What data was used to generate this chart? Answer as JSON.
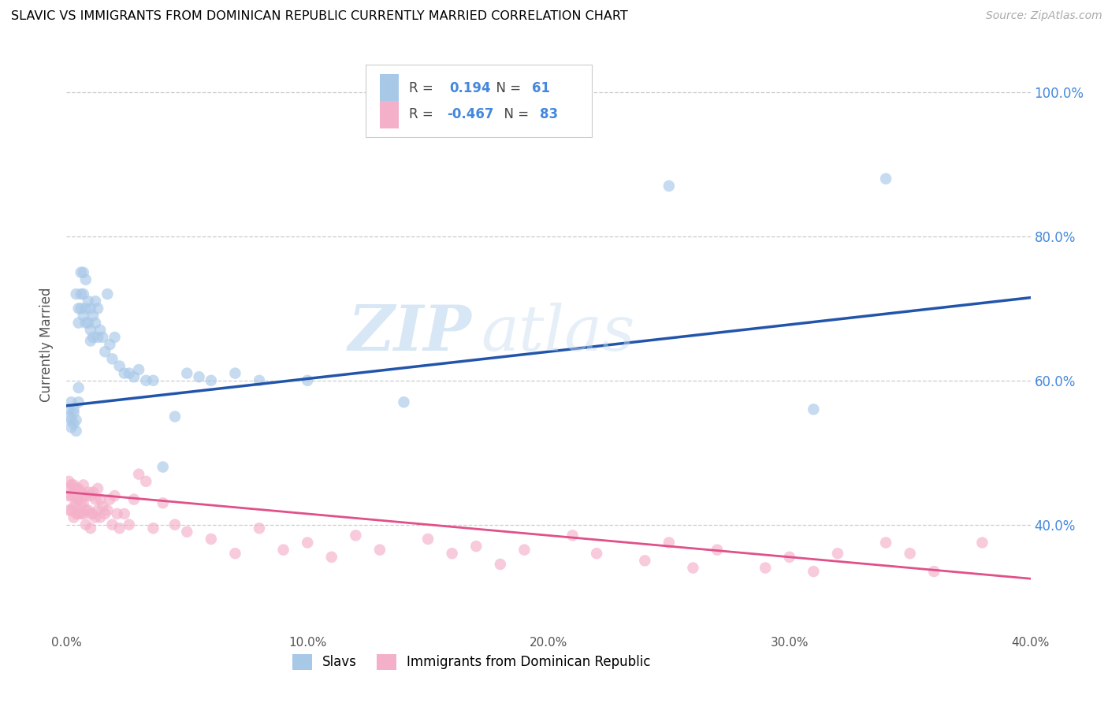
{
  "title": "SLAVIC VS IMMIGRANTS FROM DOMINICAN REPUBLIC CURRENTLY MARRIED CORRELATION CHART",
  "source": "Source: ZipAtlas.com",
  "ylabel": "Currently Married",
  "xlim": [
    0.0,
    0.4
  ],
  "ylim": [
    0.25,
    1.05
  ],
  "xtick_values": [
    0.0,
    0.1,
    0.2,
    0.3,
    0.4
  ],
  "xtick_labels": [
    "0.0%",
    "10.0%",
    "20.0%",
    "30.0%",
    "40.0%"
  ],
  "ytick_values": [
    0.4,
    0.6,
    0.8,
    1.0
  ],
  "ytick_labels": [
    "40.0%",
    "60.0%",
    "80.0%",
    "100.0%"
  ],
  "slavs_color": "#a8c8e8",
  "slavs_line_color": "#2255aa",
  "dominican_color": "#f4b0c8",
  "dominican_line_color": "#e0508a",
  "R_slavs": 0.194,
  "N_slavs": 61,
  "R_dominican": -0.467,
  "N_dominican": 83,
  "background_color": "#ffffff",
  "grid_color": "#cccccc",
  "watermark_zip": "ZIP",
  "watermark_atlas": "atlas",
  "legend_label_slavs": "Slavs",
  "legend_label_dominican": "Immigrants from Dominican Republic",
  "slavs_line_x0": 0.0,
  "slavs_line_y0": 0.565,
  "slavs_line_x1": 0.4,
  "slavs_line_y1": 0.715,
  "dominican_line_x0": 0.0,
  "dominican_line_y0": 0.445,
  "dominican_line_x1": 0.4,
  "dominican_line_y1": 0.325,
  "slavs_x": [
    0.001,
    0.001,
    0.002,
    0.002,
    0.002,
    0.003,
    0.003,
    0.003,
    0.004,
    0.004,
    0.004,
    0.005,
    0.005,
    0.005,
    0.005,
    0.006,
    0.006,
    0.006,
    0.007,
    0.007,
    0.007,
    0.008,
    0.008,
    0.008,
    0.009,
    0.009,
    0.01,
    0.01,
    0.01,
    0.011,
    0.011,
    0.012,
    0.012,
    0.013,
    0.013,
    0.014,
    0.015,
    0.016,
    0.017,
    0.018,
    0.019,
    0.02,
    0.022,
    0.024,
    0.026,
    0.028,
    0.03,
    0.033,
    0.036,
    0.04,
    0.045,
    0.05,
    0.055,
    0.06,
    0.07,
    0.08,
    0.1,
    0.14,
    0.25,
    0.31,
    0.34
  ],
  "slavs_y": [
    0.56,
    0.55,
    0.545,
    0.535,
    0.57,
    0.54,
    0.555,
    0.56,
    0.53,
    0.545,
    0.72,
    0.7,
    0.68,
    0.59,
    0.57,
    0.75,
    0.72,
    0.7,
    0.75,
    0.72,
    0.69,
    0.74,
    0.7,
    0.68,
    0.71,
    0.68,
    0.7,
    0.67,
    0.655,
    0.69,
    0.66,
    0.71,
    0.68,
    0.7,
    0.66,
    0.67,
    0.66,
    0.64,
    0.72,
    0.65,
    0.63,
    0.66,
    0.62,
    0.61,
    0.61,
    0.605,
    0.615,
    0.6,
    0.6,
    0.48,
    0.55,
    0.61,
    0.605,
    0.6,
    0.61,
    0.6,
    0.6,
    0.57,
    0.87,
    0.56,
    0.88
  ],
  "dominican_x": [
    0.001,
    0.001,
    0.001,
    0.001,
    0.002,
    0.002,
    0.002,
    0.003,
    0.003,
    0.003,
    0.003,
    0.004,
    0.004,
    0.004,
    0.005,
    0.005,
    0.005,
    0.006,
    0.006,
    0.006,
    0.007,
    0.007,
    0.007,
    0.008,
    0.008,
    0.008,
    0.009,
    0.009,
    0.01,
    0.01,
    0.01,
    0.011,
    0.011,
    0.012,
    0.012,
    0.013,
    0.013,
    0.014,
    0.014,
    0.015,
    0.016,
    0.017,
    0.018,
    0.019,
    0.02,
    0.021,
    0.022,
    0.024,
    0.026,
    0.028,
    0.03,
    0.033,
    0.036,
    0.04,
    0.045,
    0.05,
    0.06,
    0.07,
    0.08,
    0.09,
    0.1,
    0.11,
    0.12,
    0.13,
    0.15,
    0.16,
    0.17,
    0.18,
    0.19,
    0.21,
    0.22,
    0.24,
    0.25,
    0.26,
    0.27,
    0.29,
    0.3,
    0.31,
    0.32,
    0.34,
    0.35,
    0.36,
    0.38
  ],
  "dominican_y": [
    0.46,
    0.45,
    0.44,
    0.42,
    0.455,
    0.44,
    0.42,
    0.455,
    0.44,
    0.425,
    0.41,
    0.45,
    0.43,
    0.415,
    0.45,
    0.435,
    0.415,
    0.445,
    0.43,
    0.415,
    0.455,
    0.43,
    0.415,
    0.44,
    0.42,
    0.4,
    0.445,
    0.42,
    0.44,
    0.415,
    0.395,
    0.445,
    0.415,
    0.435,
    0.41,
    0.45,
    0.42,
    0.435,
    0.41,
    0.425,
    0.415,
    0.42,
    0.435,
    0.4,
    0.44,
    0.415,
    0.395,
    0.415,
    0.4,
    0.435,
    0.47,
    0.46,
    0.395,
    0.43,
    0.4,
    0.39,
    0.38,
    0.36,
    0.395,
    0.365,
    0.375,
    0.355,
    0.385,
    0.365,
    0.38,
    0.36,
    0.37,
    0.345,
    0.365,
    0.385,
    0.36,
    0.35,
    0.375,
    0.34,
    0.365,
    0.34,
    0.355,
    0.335,
    0.36,
    0.375,
    0.36,
    0.335,
    0.375
  ]
}
